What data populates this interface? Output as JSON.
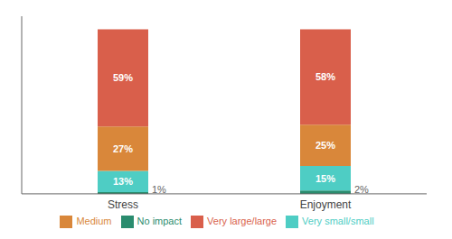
{
  "chart_data": {
    "type": "bar",
    "stacked": true,
    "categories": [
      "Stress",
      "Enjoyment"
    ],
    "series": [
      {
        "name": "No impact",
        "color": "#2a8c6e",
        "values": [
          1,
          2
        ],
        "value_labels": [
          "1%",
          "2%"
        ]
      },
      {
        "name": "Very small/small",
        "color": "#4ecdc4",
        "values": [
          13,
          15
        ],
        "value_labels": [
          "13%",
          "15%"
        ]
      },
      {
        "name": "Medium",
        "color": "#d9873a",
        "values": [
          27,
          25
        ],
        "value_labels": [
          "27%",
          "25%"
        ]
      },
      {
        "name": "Very large/large",
        "color": "#d95f4b",
        "values": [
          59,
          58
        ],
        "value_labels": [
          "59%",
          "58%"
        ]
      }
    ],
    "ylim": [
      0,
      108
    ],
    "data_labels": true,
    "tick_labels": "x",
    "grid": false,
    "legend": "bottom"
  }
}
